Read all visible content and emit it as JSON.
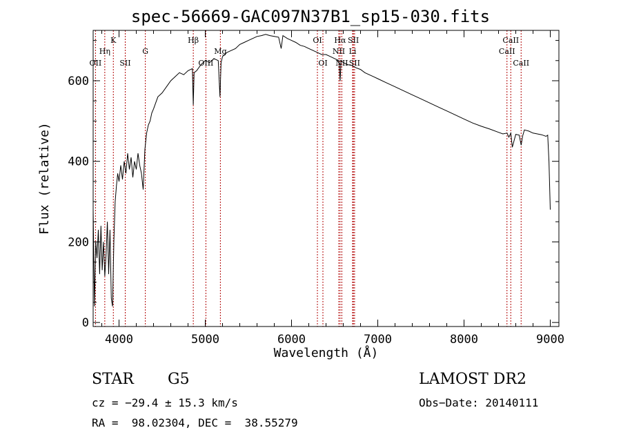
{
  "chart_data": {
    "type": "line",
    "title": "spec-56669-GAC097N37B1_sp15-030.fits",
    "xlabel": "Wavelength (Å)",
    "ylabel": "Flux (relative)",
    "xlim": [
      3700,
      9100
    ],
    "ylim": [
      -10,
      725
    ],
    "x_ticks": [
      4000,
      5000,
      6000,
      7000,
      8000,
      9000
    ],
    "y_ticks": [
      0,
      200,
      400,
      600
    ],
    "grid": false,
    "series": [
      {
        "x": [
          3700,
          3715,
          3730,
          3745,
          3760,
          3775,
          3790,
          3805,
          3820,
          3835,
          3850,
          3865,
          3880,
          3895,
          3910,
          3925,
          3940,
          3955,
          3970,
          3985,
          4000,
          4020,
          4040,
          4060,
          4080,
          4100,
          4120,
          4140,
          4160,
          4180,
          4200,
          4220,
          4240,
          4260,
          4280,
          4300,
          4320,
          4340,
          4360,
          4380,
          4400,
          4450,
          4500,
          4550,
          4600,
          4650,
          4700,
          4750,
          4800,
          4850,
          4861,
          4870,
          4900,
          4950,
          5000,
          5050,
          5100,
          5150,
          5170,
          5183,
          5200,
          5250,
          5300,
          5350,
          5400,
          5450,
          5500,
          5550,
          5600,
          5650,
          5700,
          5750,
          5800,
          5850,
          5880,
          5900,
          5950,
          6000,
          6050,
          6100,
          6150,
          6200,
          6250,
          6300,
          6350,
          6400,
          6450,
          6500,
          6550,
          6563,
          6575,
          6600,
          6650,
          6700,
          6750,
          6800,
          6850,
          6900,
          6950,
          7000,
          7100,
          7200,
          7300,
          7400,
          7500,
          7600,
          7700,
          7800,
          7900,
          8000,
          8100,
          8200,
          8300,
          8400,
          8450,
          8498,
          8520,
          8542,
          8560,
          8600,
          8640,
          8662,
          8680,
          8700,
          8750,
          8800,
          8850,
          8900,
          8950,
          8970,
          8985,
          9000
        ],
        "y": [
          280,
          40,
          200,
          160,
          230,
          120,
          240,
          130,
          200,
          115,
          170,
          250,
          120,
          230,
          60,
          40,
          200,
          300,
          340,
          370,
          350,
          390,
          355,
          400,
          370,
          420,
          380,
          410,
          360,
          400,
          380,
          420,
          390,
          370,
          330,
          430,
          470,
          490,
          500,
          520,
          530,
          560,
          570,
          585,
          600,
          610,
          620,
          615,
          625,
          630,
          540,
          620,
          625,
          640,
          650,
          645,
          655,
          650,
          560,
          645,
          660,
          670,
          675,
          680,
          690,
          695,
          700,
          705,
          710,
          712,
          715,
          712,
          710,
          708,
          680,
          712,
          705,
          700,
          695,
          688,
          685,
          680,
          675,
          670,
          665,
          665,
          660,
          655,
          650,
          600,
          650,
          645,
          640,
          638,
          632,
          628,
          620,
          615,
          610,
          605,
          595,
          585,
          575,
          565,
          555,
          545,
          535,
          525,
          515,
          505,
          495,
          487,
          480,
          472,
          468,
          470,
          460,
          470,
          435,
          467,
          465,
          440,
          463,
          478,
          475,
          470,
          468,
          466,
          462,
          465,
          400,
          280
        ]
      }
    ],
    "line_labels": [
      {
        "name": "OII",
        "x": 3727,
        "row": 3
      },
      {
        "name": "Hη",
        "x": 3835,
        "row": 2
      },
      {
        "name": "K",
        "x": 3934,
        "row": 1
      },
      {
        "name": "SII",
        "x": 4072,
        "row": 3
      },
      {
        "name": "G",
        "x": 4305,
        "row": 2
      },
      {
        "name": "Hβ",
        "x": 4861,
        "row": 1
      },
      {
        "name": "OIII",
        "x": 5007,
        "row": 3
      },
      {
        "name": "Mg",
        "x": 5175,
        "row": 2
      },
      {
        "name": "OI",
        "x": 6300,
        "row": 1
      },
      {
        "name": "OI",
        "x": 6364,
        "row": 3
      },
      {
        "name": "NII",
        "x": 6548,
        "row": 2
      },
      {
        "name": "NII",
        "x": 6583,
        "row": 3
      },
      {
        "name": "Hα",
        "x": 6563,
        "row": 1
      },
      {
        "name": "SII",
        "x": 6717,
        "row": 1
      },
      {
        "name": "Li",
        "x": 6708,
        "row": 2
      },
      {
        "name": "SII",
        "x": 6731,
        "row": 3
      },
      {
        "name": "CaII",
        "x": 8498,
        "row": 2
      },
      {
        "name": "CaII",
        "x": 8542,
        "row": 1
      },
      {
        "name": "CaII",
        "x": 8662,
        "row": 3
      }
    ]
  },
  "info": {
    "class_label": "STAR",
    "subclass_label": "G5",
    "survey": "LAMOST DR2",
    "cz_line": "cz = −29.4 ± 15.3 km/s",
    "obs_date_line": "Obs−Date: 20140111",
    "radec_line": "RA =  98.02304, DEC =  38.55279"
  },
  "colors": {
    "spectrum": "#000000",
    "line_markers": "#b00000",
    "axes": "#000000"
  }
}
